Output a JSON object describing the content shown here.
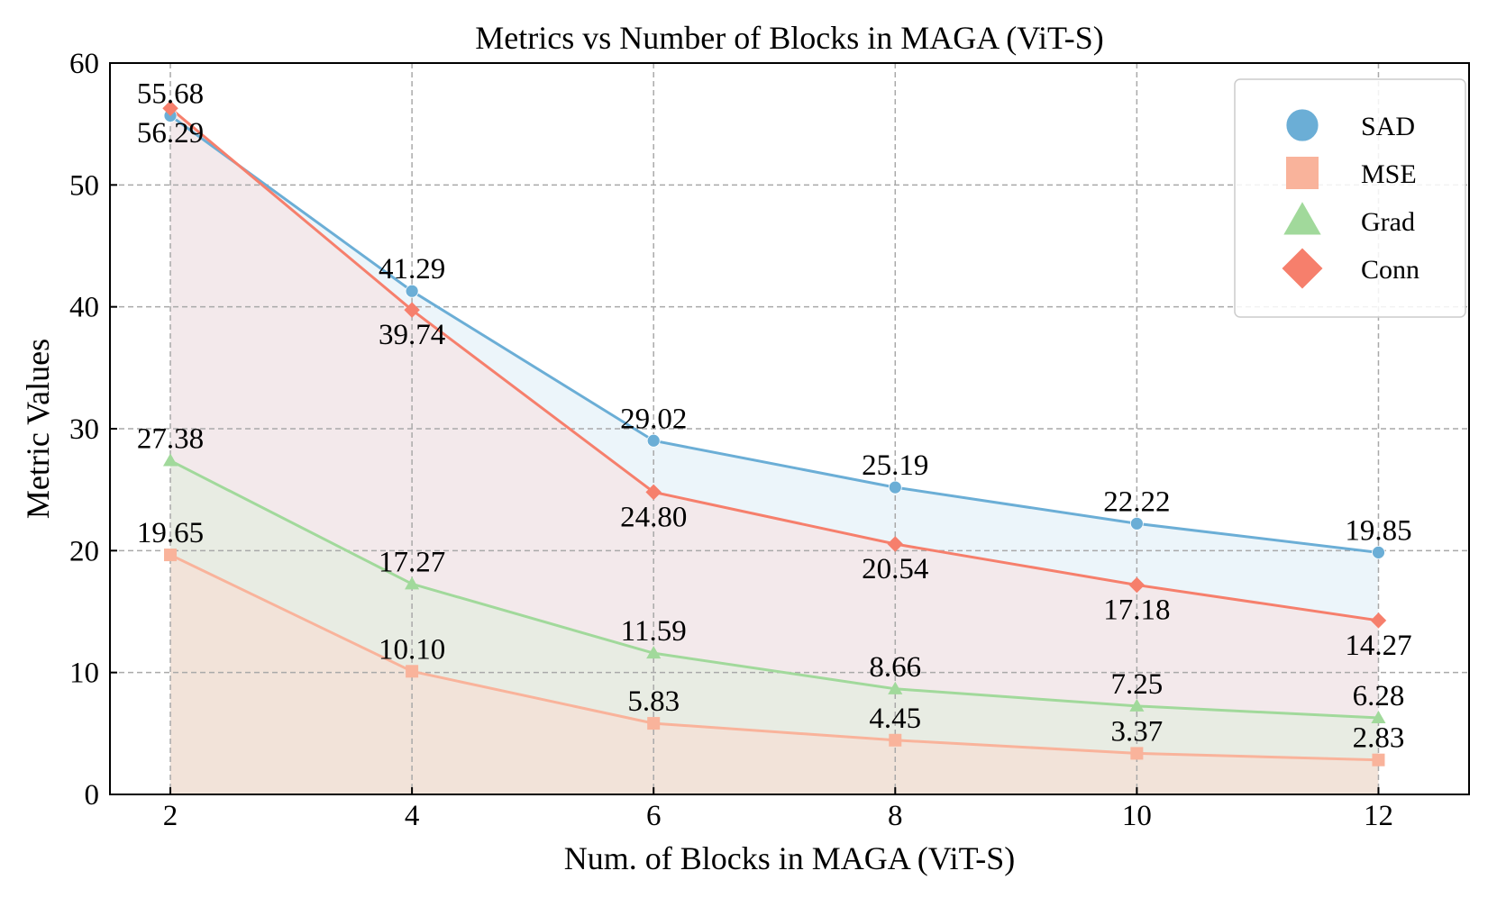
{
  "chart_data": {
    "type": "line",
    "title": "Metrics vs Number of Blocks in MAGA (ViT-S)",
    "xlabel": "Num. of Blocks in MAGA (ViT-S)",
    "ylabel": "Metric Values",
    "x": [
      2,
      4,
      6,
      8,
      10,
      12
    ],
    "x_ticks": [
      "2",
      "4",
      "6",
      "8",
      "10",
      "12"
    ],
    "y_ticks": [
      "0",
      "10",
      "20",
      "30",
      "40",
      "50",
      "60"
    ],
    "xlim": [
      1.5,
      12.75
    ],
    "ylim": [
      0,
      60
    ],
    "grid": true,
    "legend_position": "top-right",
    "series": [
      {
        "name": "SAD",
        "values": [
          55.68,
          41.29,
          29.02,
          25.19,
          22.22,
          19.85
        ],
        "labels": [
          "55.68",
          "41.29",
          "29.02",
          "25.19",
          "22.22",
          "19.85"
        ],
        "color": "#6baed6",
        "fill": "#e6f1f8",
        "marker": "circle"
      },
      {
        "name": "MSE",
        "values": [
          19.65,
          10.1,
          5.83,
          4.45,
          3.37,
          2.83
        ],
        "labels": [
          "19.65",
          "10.10",
          "5.83",
          "4.45",
          "3.37",
          "2.83"
        ],
        "color": "#f9b39b",
        "fill": "#f5e0d6",
        "marker": "square"
      },
      {
        "name": "Grad",
        "values": [
          27.38,
          17.27,
          11.59,
          8.66,
          7.25,
          6.28
        ],
        "labels": [
          "27.38",
          "17.27",
          "11.59",
          "8.66",
          "7.25",
          "6.28"
        ],
        "color": "#a1d99b",
        "fill": "#e4ece0",
        "marker": "triangle"
      },
      {
        "name": "Conn",
        "values": [
          56.29,
          39.74,
          24.8,
          20.54,
          17.18,
          14.27
        ],
        "labels": [
          "56.29",
          "39.74",
          "24.80",
          "20.54",
          "17.18",
          "14.27"
        ],
        "color": "#f67f6c",
        "fill": "#f6e4e6",
        "marker": "diamond"
      }
    ]
  }
}
